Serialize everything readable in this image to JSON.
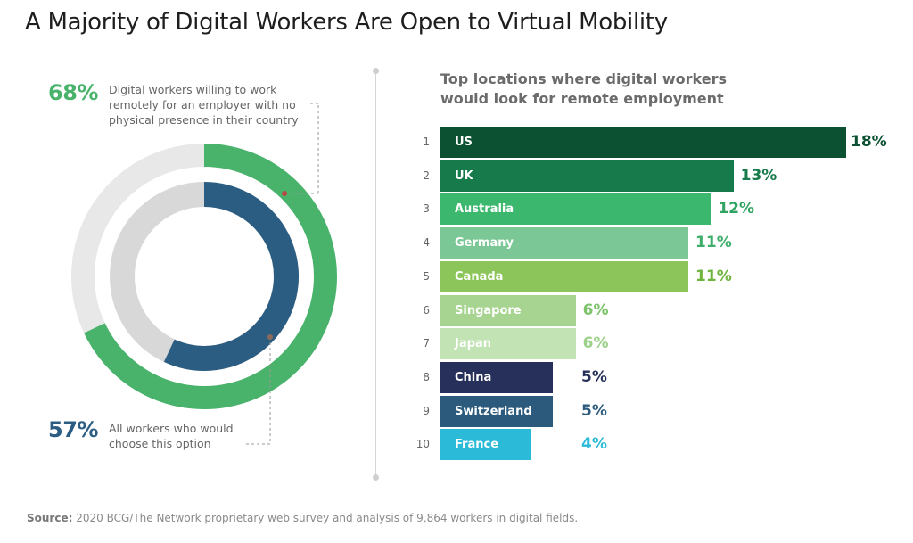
{
  "title": "A Majority of Digital Workers Are Open to Virtual Mobility",
  "colors": {
    "green_primary": "#49b36c",
    "blue_primary": "#2b5d82",
    "outer_track": "#e8e8e8",
    "inner_track": "#d8d8d8"
  },
  "donut": {
    "outer": {
      "value_label": "68%",
      "percent": 68,
      "description": "Digital workers willing to work\nremotely for an employer with no\nphysical presence in their country",
      "color": "#49b36c"
    },
    "inner": {
      "value_label": "57%",
      "percent": 57,
      "description": "All workers who would\nchoose this option",
      "color": "#2b5d82"
    }
  },
  "chart_data": {
    "type": "bar",
    "title": "Top locations where digital workers\nwould look for remote employment",
    "categories": [
      "US",
      "UK",
      "Australia",
      "Germany",
      "Canada",
      "Singapore",
      "Japan",
      "China",
      "Switzerland",
      "France"
    ],
    "ranks": [
      "1",
      "2",
      "3",
      "4",
      "5",
      "6",
      "7",
      "8",
      "9",
      "10"
    ],
    "values": [
      18,
      13,
      12,
      11,
      11,
      6,
      6,
      5,
      5,
      4
    ],
    "value_labels": [
      "18%",
      "13%",
      "12%",
      "11%",
      "11%",
      "6%",
      "6%",
      "5%",
      "5%",
      "4%"
    ],
    "bar_colors": [
      "#0c5232",
      "#177a4a",
      "#3cb86e",
      "#7cc796",
      "#8cc65a",
      "#a7d591",
      "#c2e3b3",
      "#27305a",
      "#2b5a7d",
      "#2bbad8"
    ],
    "value_colors": [
      "#0c5232",
      "#177a4a",
      "#2fa35f",
      "#3fae6a",
      "#6fb43f",
      "#7cc36a",
      "#9bd189",
      "#27305a",
      "#2b5a7d",
      "#2bbad8"
    ],
    "xlim": [
      0,
      18
    ],
    "orientation": "horizontal"
  },
  "source": {
    "label": "Source:",
    "text": " 2020 BCG/The Network proprietary web survey and analysis of 9,864 workers in digital fields."
  }
}
